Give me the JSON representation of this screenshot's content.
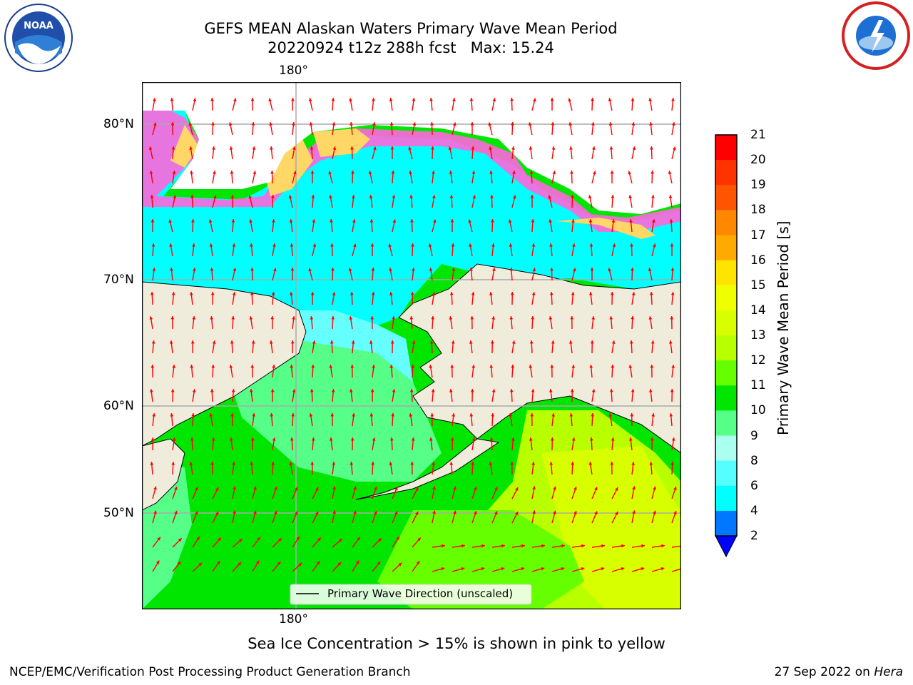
{
  "title_line1": "GEFS MEAN Alaskan Waters Primary Wave Mean Period",
  "title_line2": "20220924 t12z 288h fcst   Max: 15.24",
  "logos": {
    "left": "noaa-logo",
    "right": "nws-logo"
  },
  "map": {
    "lon_label_top": "180°",
    "lon_label_bottom": "180°",
    "lat_labels": [
      "80°N",
      "70°N",
      "60°N",
      "50°N"
    ],
    "legend_label": "Primary Wave Direction (unscaled)",
    "colors": {
      "land": "#efecdc",
      "ice_pink": "#ff66dd",
      "ice_yellow": "#ffd766",
      "arrow": "#ff0000"
    }
  },
  "colorbar": {
    "label": "Primary Wave Mean Period [s]",
    "ticks": [
      "21",
      "20",
      "19",
      "18",
      "17",
      "16",
      "15",
      "14",
      "13",
      "12",
      "11",
      "10",
      "9",
      "8",
      "6",
      "4",
      "2"
    ],
    "colors": [
      "#ff0000",
      "#ff3300",
      "#ff5500",
      "#ff8800",
      "#ffaa00",
      "#ffe400",
      "#f0ff00",
      "#d8ff00",
      "#b8ff00",
      "#66ff00",
      "#00e600",
      "#55ff88",
      "#aaffee",
      "#55ffff",
      "#00ffff",
      "#0077ff"
    ],
    "extend_color": "#0000ff"
  },
  "caption": "Sea Ice Concentration > 15% is shown in pink to yellow",
  "footer": {
    "left": "NCEP/EMC/Verification Post Processing Product Generation Branch",
    "right_date": "27 Sep 2022 on ",
    "right_host": "Hera"
  }
}
